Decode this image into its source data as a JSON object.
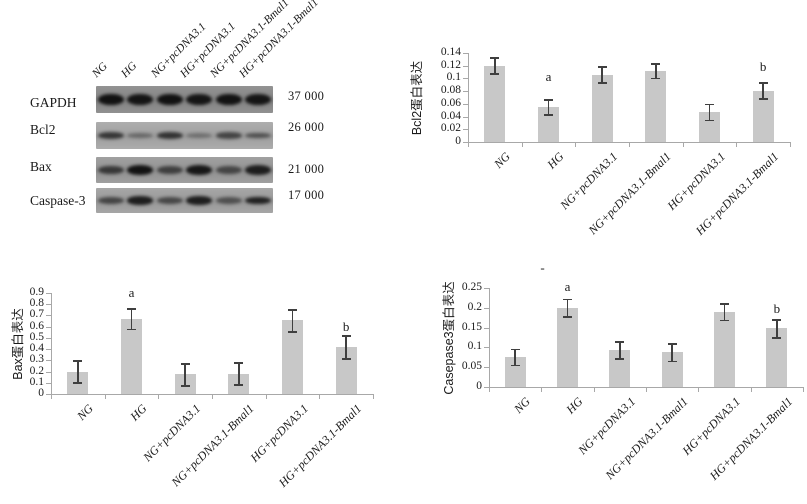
{
  "figure": {
    "kind": "western-blot-with-bar-charts",
    "background": "#ffffff"
  },
  "colors": {
    "bar": "#c8c8c8",
    "axis": "#a8a8a8",
    "error": "#3f3f3f",
    "text": "#1a1a1a",
    "band": "12,12,12"
  },
  "blot": {
    "lane_labels": [
      "NG",
      "HG",
      "NG+pcDNA3.1",
      "HG+pcDNA3.1",
      "NG+pcDNA3.1-Bmal1",
      "HG+pcDNA3.1-Bmal1"
    ],
    "rows": [
      {
        "label": "GAPDH",
        "mw": "37 000",
        "shade": "#8b8b8b",
        "bands": [
          0.95,
          0.93,
          0.95,
          0.92,
          0.94,
          0.92
        ]
      },
      {
        "label": "Bcl2",
        "mw": "26 000",
        "shade": "#a8a8a8",
        "bands": [
          0.72,
          0.38,
          0.75,
          0.33,
          0.62,
          0.55
        ]
      },
      {
        "label": "Bax",
        "mw": "21 000",
        "shade": "#9a9a9a",
        "bands": [
          0.68,
          0.95,
          0.62,
          0.92,
          0.58,
          0.88
        ]
      },
      {
        "label": "Caspase-3",
        "mw": "17 000",
        "shade": "#a1a1a1",
        "bands": [
          0.6,
          0.88,
          0.58,
          0.88,
          0.52,
          0.85
        ]
      }
    ]
  },
  "chart_data": [
    {
      "id": "bcl2",
      "type": "bar",
      "title": "",
      "xlabel": "",
      "ylabel": "Bcl2蛋白表达",
      "categories": [
        "NG",
        "HG",
        "NG+pcDNA3.1",
        "NG+pcDNA3.1-Bmal1",
        "HG+pcDNA3.1",
        "HG+pcDNA3.1-Bmal1"
      ],
      "values": [
        0.12,
        0.055,
        0.106,
        0.112,
        0.047,
        0.081
      ],
      "errors": [
        0.013,
        0.012,
        0.013,
        0.012,
        0.013,
        0.013
      ],
      "ylim": [
        0,
        0.14
      ],
      "grid": false,
      "legend": "none",
      "yticks": [
        {
          "label": "0",
          "v": 0
        },
        {
          "label": "0.02",
          "v": 0.02
        },
        {
          "label": "0.04",
          "v": 0.04
        },
        {
          "label": "0.06",
          "v": 0.06
        },
        {
          "label": "0.08",
          "v": 0.08
        },
        {
          "label": "0.1",
          "v": 0.1
        },
        {
          "label": "0.12",
          "v": 0.12
        },
        {
          "label": "0.14",
          "v": 0.14
        }
      ],
      "annotations": [
        {
          "index": 1,
          "text": "a",
          "y": 0.103
        },
        {
          "index": 5,
          "text": "b",
          "y": 0.118
        }
      ]
    },
    {
      "id": "bax",
      "type": "bar",
      "title": "",
      "xlabel": "",
      "ylabel": "Bax蛋白表达",
      "categories": [
        "NG",
        "HG",
        "NG+pcDNA3.1",
        "NG+pcDNA3.1-Bmal1",
        "HG+pcDNA3.1",
        "HG+pcDNA3.1-Bmal1"
      ],
      "values": [
        0.2,
        0.67,
        0.175,
        0.182,
        0.655,
        0.42
      ],
      "errors": [
        0.1,
        0.095,
        0.1,
        0.1,
        0.1,
        0.105
      ],
      "ylim": [
        0,
        0.9
      ],
      "grid": false,
      "legend": "none",
      "yticks": [
        {
          "label": "0",
          "v": 0
        },
        {
          "label": "0.1",
          "v": 0.1
        },
        {
          "label": "0.2",
          "v": 0.2
        },
        {
          "label": "0.3",
          "v": 0.3
        },
        {
          "label": "0.4",
          "v": 0.4
        },
        {
          "label": "0.5",
          "v": 0.5
        },
        {
          "label": "0.6",
          "v": 0.6
        },
        {
          "label": "0.7",
          "v": 0.7
        },
        {
          "label": "0.8",
          "v": 0.8
        },
        {
          "label": "0.9",
          "v": 0.9
        }
      ],
      "annotations": [
        {
          "index": 1,
          "text": "a",
          "y": 0.9
        },
        {
          "index": 5,
          "text": "b",
          "y": 0.6
        }
      ]
    },
    {
      "id": "caspase3",
      "type": "bar",
      "title": "",
      "xlabel": "",
      "ylabel": "Casepase3蛋白表达",
      "categories": [
        "NG",
        "HG",
        "NG+pcDNA3.1",
        "NG+pcDNA3.1-Bmal1",
        "HG+pcDNA3.1",
        "HG+pcDNA3.1-Bmal1"
      ],
      "values": [
        0.076,
        0.2,
        0.093,
        0.088,
        0.19,
        0.148
      ],
      "errors": [
        0.021,
        0.023,
        0.022,
        0.023,
        0.022,
        0.023
      ],
      "ylim": [
        0,
        0.25
      ],
      "grid": false,
      "legend": "none",
      "yticks": [
        {
          "label": "0",
          "v": 0
        },
        {
          "label": "0.05",
          "v": 0.05
        },
        {
          "label": "0.1",
          "v": 0.1
        },
        {
          "label": "0.15",
          "v": 0.15
        },
        {
          "label": "0.2",
          "v": 0.2
        },
        {
          "label": "0.25",
          "v": 0.25
        }
      ],
      "annotations": [
        {
          "index": 1,
          "text": "a",
          "y": 0.252
        },
        {
          "index": 5,
          "text": "b",
          "y": 0.197
        },
        {
          "index": 1,
          "text": "-",
          "y": 0.3,
          "dx": -25
        }
      ]
    }
  ]
}
